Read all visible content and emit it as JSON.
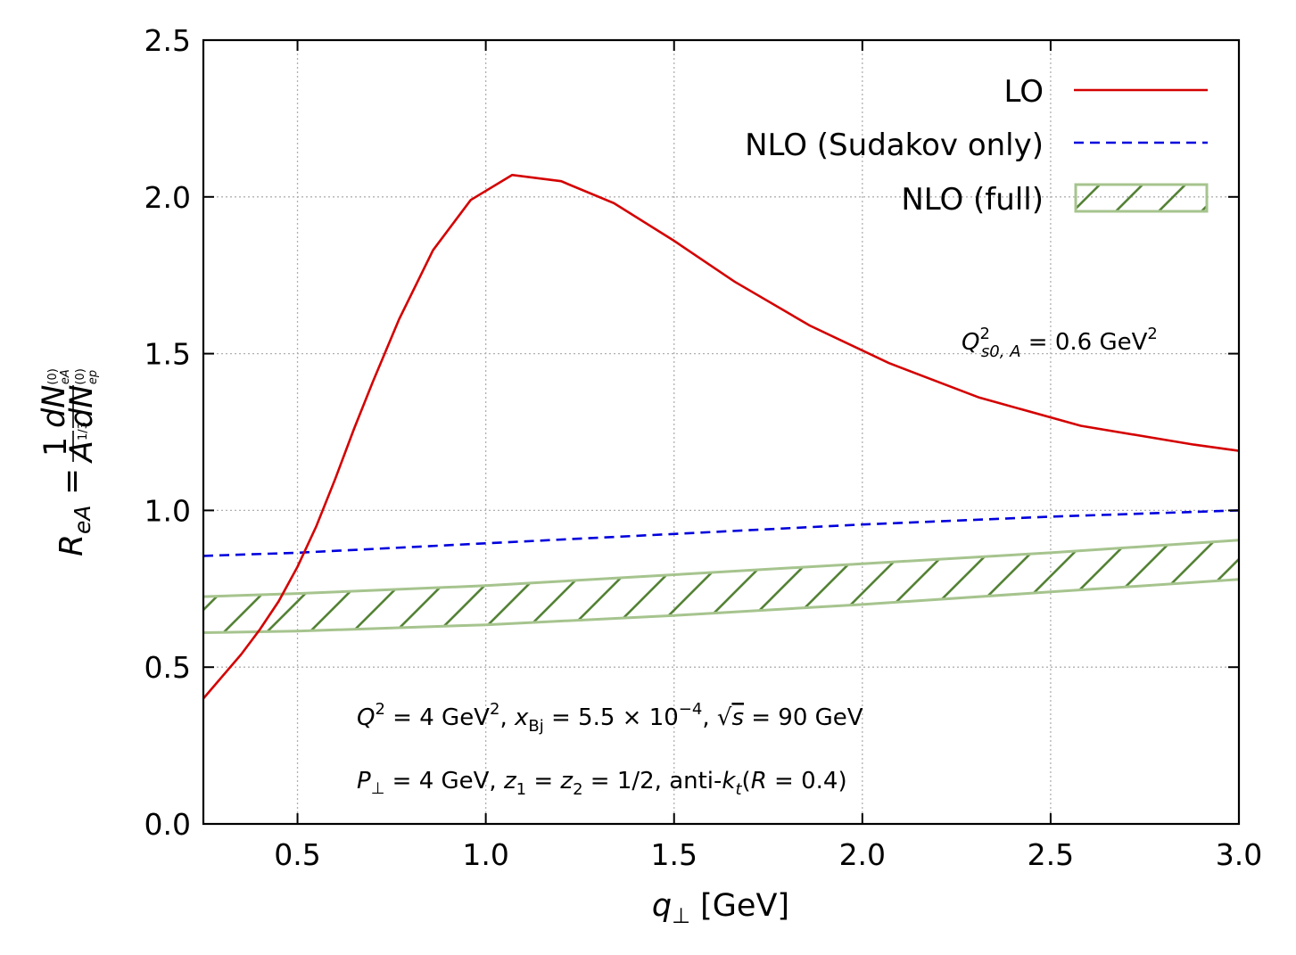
{
  "chart_data": {
    "type": "line",
    "xlabel": "q⊥ [GeV]",
    "ylabel": "ReA = (1/A^{1/3}) dN_eA^(0) / dN_ep^(0)",
    "xlim": [
      0.25,
      3.0
    ],
    "ylim": [
      0.0,
      2.5
    ],
    "x_ticks": [
      "0.5",
      "1.0",
      "1.5",
      "2.0",
      "2.5",
      "3.0"
    ],
    "y_ticks": [
      "0.0",
      "0.5",
      "1.0",
      "1.5",
      "2.0",
      "2.5"
    ],
    "grid": true,
    "legend_position": "top-right",
    "series": [
      {
        "name": "LO",
        "style": "solid",
        "color": "#d40000",
        "x": [
          0.25,
          0.3,
          0.35,
          0.4,
          0.45,
          0.5,
          0.55,
          0.6,
          0.65,
          0.7,
          0.77,
          0.86,
          0.96,
          1.07,
          1.2,
          1.34,
          1.5,
          1.66,
          1.86,
          2.07,
          2.31,
          2.58,
          2.88,
          3.0
        ],
        "y": [
          0.4,
          0.47,
          0.54,
          0.62,
          0.71,
          0.82,
          0.95,
          1.1,
          1.26,
          1.41,
          1.61,
          1.83,
          1.99,
          2.07,
          2.05,
          1.98,
          1.86,
          1.73,
          1.59,
          1.47,
          1.36,
          1.27,
          1.21,
          1.19
        ]
      },
      {
        "name": "NLO (Sudakov only)",
        "style": "dashed",
        "color": "#0000dd",
        "x": [
          0.25,
          0.5,
          1.0,
          1.5,
          2.0,
          2.5,
          3.0
        ],
        "y": [
          0.855,
          0.865,
          0.895,
          0.925,
          0.955,
          0.98,
          1.0
        ]
      },
      {
        "name": "NLO (full)",
        "style": "hatched-band",
        "color": "#548235",
        "edge_color": "#a6c48e",
        "x": [
          0.25,
          0.5,
          1.0,
          1.5,
          2.0,
          2.5,
          3.0
        ],
        "upper": [
          0.725,
          0.735,
          0.76,
          0.795,
          0.83,
          0.865,
          0.905
        ],
        "lower": [
          0.61,
          0.615,
          0.635,
          0.665,
          0.7,
          0.74,
          0.78
        ]
      }
    ],
    "annotations": {
      "saturation": [
        "Q",
        "2",
        "s0, A",
        " = 0.6 GeV",
        "2"
      ],
      "kinematics_line1": {
        "q": "Q",
        "q_pow": "2",
        "q_val": " = 4 GeV",
        "q_unit_pow": "2",
        "sep1": ", ",
        "x": "x",
        "x_sub": "Bj",
        "x_val": " = 5.5 × 10",
        "x_pow": "−4",
        "sep2": ", ",
        "sqrt": "√",
        "s": "s",
        "s_val": " = 90 GeV"
      },
      "kinematics_line2": {
        "p": "P",
        "p_sub": "⊥",
        "p_val": " = 4 GeV, ",
        "z1": "z",
        "z1_sub": "1",
        "eq": " = ",
        "z2": "z",
        "z2_sub": "2",
        "z_val": " = 1/2, anti-",
        "k": "k",
        "k_sub": "t",
        "open": "(",
        "r": "R",
        "r_val": " = 0.4)"
      }
    },
    "axis_text": {
      "x": {
        "q": "q",
        "sub": "⊥",
        "unit": " [GeV]"
      },
      "y": {
        "R": "R",
        "R_sub": "eA",
        "eq": " = ",
        "one": "1",
        "A": "A",
        "A_pow": "1/3",
        "dN": "dN",
        "pow0": "(0)",
        "eA": "eA",
        "ep": "ep"
      }
    }
  }
}
